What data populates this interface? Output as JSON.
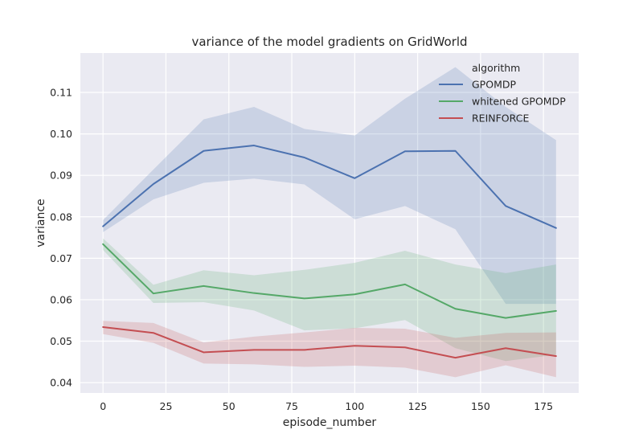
{
  "chart_data": {
    "type": "line",
    "title": "variance of the model gradients on GridWorld",
    "xlabel": "episode_number",
    "ylabel": "variance",
    "xlim": [
      -9,
      189
    ],
    "ylim": [
      0.0375,
      0.1195
    ],
    "xticks": [
      0,
      25,
      50,
      75,
      100,
      125,
      150,
      175
    ],
    "yticks": [
      0.04,
      0.05,
      0.06,
      0.07,
      0.08,
      0.09,
      0.1,
      0.11
    ],
    "ytick_labels": [
      "0.04",
      "0.05",
      "0.06",
      "0.07",
      "0.08",
      "0.09",
      "0.10",
      "0.11"
    ],
    "grid": true,
    "legend": {
      "title": "algorithm",
      "placement": "top-right"
    },
    "x": [
      0,
      20,
      40,
      60,
      80,
      100,
      120,
      140,
      160,
      180
    ],
    "series": [
      {
        "name": "GPOMDP",
        "color": "#4c72b0",
        "values": [
          0.0777,
          0.0879,
          0.0959,
          0.0972,
          0.0943,
          0.0893,
          0.0958,
          0.0959,
          0.0826,
          0.0773
        ],
        "lower": [
          0.0763,
          0.0842,
          0.0882,
          0.0892,
          0.0878,
          0.0794,
          0.0826,
          0.077,
          0.059,
          0.059
        ],
        "upper": [
          0.0792,
          0.0914,
          0.1035,
          0.1065,
          0.1012,
          0.0996,
          0.1085,
          0.1161,
          0.1065,
          0.0985
        ]
      },
      {
        "name": "whitened GPOMDP",
        "color": "#55a868",
        "values": [
          0.0734,
          0.0615,
          0.0633,
          0.0616,
          0.0603,
          0.0613,
          0.0637,
          0.0578,
          0.0556,
          0.0573
        ],
        "lower": [
          0.072,
          0.0592,
          0.0594,
          0.0574,
          0.0526,
          0.0531,
          0.0551,
          0.0483,
          0.0452,
          0.0467
        ],
        "upper": [
          0.0748,
          0.0636,
          0.0671,
          0.0659,
          0.0672,
          0.0689,
          0.0718,
          0.0685,
          0.0664,
          0.0685
        ]
      },
      {
        "name": "REINFORCE",
        "color": "#c44e52",
        "values": [
          0.0534,
          0.052,
          0.0473,
          0.0479,
          0.0479,
          0.0489,
          0.0485,
          0.046,
          0.0483,
          0.0464
        ],
        "lower": [
          0.0517,
          0.0496,
          0.0446,
          0.0444,
          0.0438,
          0.0441,
          0.0436,
          0.0413,
          0.0442,
          0.0413
        ],
        "upper": [
          0.0549,
          0.0544,
          0.0497,
          0.0511,
          0.0521,
          0.0532,
          0.053,
          0.0508,
          0.052,
          0.0521
        ]
      }
    ]
  }
}
